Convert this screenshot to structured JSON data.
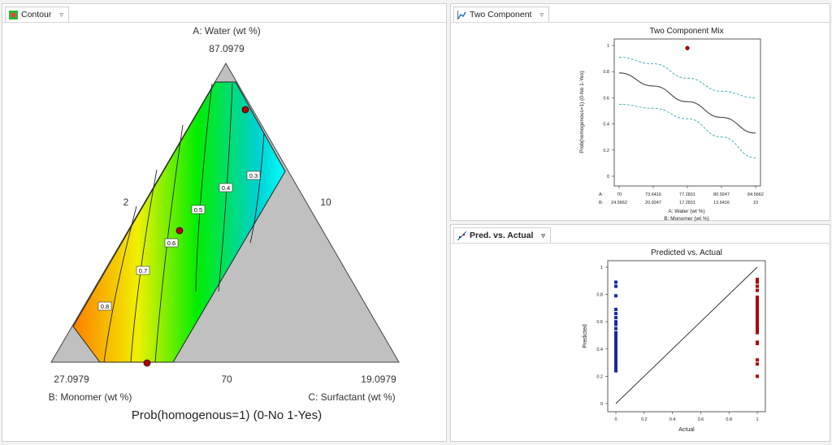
{
  "tabs": {
    "contour": "Contour",
    "two_component": "Two Component",
    "pred_vs_actual": "Pred. vs. Actual",
    "menu_glyph": "▿"
  },
  "colors": {
    "gray_region": "#c0c0c0",
    "gradient_low": "#00ffff",
    "gradient_mid": "#00ee00",
    "gradient_high": "#ff8000",
    "point_red": "#b00000",
    "point_blue": "#1a2a9a",
    "ci_line": "#3aa6b4",
    "fit_line": "#444444"
  },
  "chart_data": [
    {
      "type": "contour",
      "title": "Prob(homogenous=1) (0-No 1-Yes)",
      "vertex_labels": {
        "top_name": "A: Water (wt %)",
        "top_value": "87.0979",
        "left_name": "B: Monomer (wt %)",
        "left_value": "27.0979",
        "right_name": "C: Surfactant (wt %)",
        "right_value": "19.0979"
      },
      "edge_labels": {
        "left": "2",
        "right": "10",
        "bottom": "70"
      },
      "contour_levels": [
        "0.8",
        "0.7",
        "0.6",
        "0.5",
        "0.4",
        "0.3"
      ],
      "design_points": 3
    },
    {
      "type": "line",
      "title": "Two Component Mix",
      "ylabel": "Prob(homogenous=1) (0-No 1-Yes)",
      "xlabel_a": "A: Water (wt %)",
      "xlabel_b": "B: Monomer (wt %)",
      "axis_row_a": "A:",
      "axis_row_b": "B:",
      "x_ticks_a": [
        "70",
        "73.6416",
        "77.2831",
        "80.9247",
        "84.5662"
      ],
      "x_ticks_b": [
        "24.5662",
        "20.9247",
        "17.2831",
        "13.6416",
        "10"
      ],
      "y_ticks": [
        "0",
        "0.2",
        "0.4",
        "0.6",
        "0.8",
        "1"
      ],
      "xlim": [
        70,
        84.5662
      ],
      "ylim": [
        0,
        1
      ],
      "fit": {
        "x": [
          70,
          73.6416,
          77.2831,
          80.9247,
          84.5662
        ],
        "y": [
          0.79,
          0.69,
          0.57,
          0.45,
          0.33
        ]
      },
      "ci_upper": {
        "x": [
          70,
          73.6416,
          77.2831,
          80.9247,
          84.5662
        ],
        "y": [
          0.91,
          0.86,
          0.75,
          0.65,
          0.6
        ]
      },
      "ci_lower": {
        "x": [
          70,
          73.6416,
          77.2831,
          80.9247,
          84.5662
        ],
        "y": [
          0.55,
          0.52,
          0.44,
          0.3,
          0.14
        ]
      },
      "points": {
        "x": [
          77.2831
        ],
        "y": [
          0.98
        ]
      }
    },
    {
      "type": "scatter",
      "title": "Predicted vs. Actual",
      "xlabel": "Actual",
      "ylabel": "Predicted",
      "x_ticks": [
        "0",
        "0.2",
        "0.4",
        "0.6",
        "0.8",
        "1"
      ],
      "y_ticks": [
        "0",
        "0.2",
        "0.4",
        "0.6",
        "0.8",
        "1"
      ],
      "xlim": [
        0,
        1
      ],
      "ylim": [
        0,
        1
      ],
      "actual0_predicted": [
        0.89,
        0.86,
        0.79,
        0.69,
        0.66,
        0.63,
        0.6,
        0.58,
        0.55,
        0.52,
        0.5,
        0.48,
        0.46,
        0.45,
        0.43,
        0.41,
        0.4,
        0.38,
        0.36,
        0.34,
        0.32,
        0.3,
        0.28,
        0.26,
        0.24
      ],
      "actual1_predicted": [
        0.91,
        0.89,
        0.86,
        0.83,
        0.78,
        0.76,
        0.74,
        0.72,
        0.7,
        0.68,
        0.67,
        0.65,
        0.63,
        0.62,
        0.6,
        0.58,
        0.57,
        0.55,
        0.53,
        0.52,
        0.45,
        0.44,
        0.32,
        0.29,
        0.2
      ]
    }
  ]
}
